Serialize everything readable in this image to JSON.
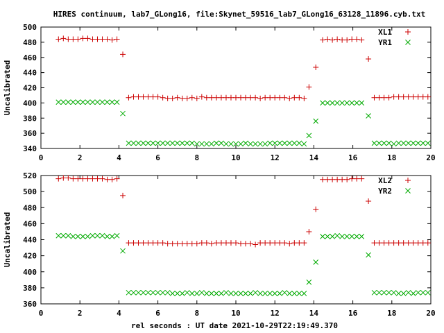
{
  "title": "HIRES continuum, lab7_GLong16, file:Skynet_59516_lab7_GLong16_63128_11896.cyb.txt",
  "xlabel": "rel seconds : UT date 2021-10-29T22:19:49.370",
  "chart_data": [
    {
      "type": "scatter",
      "ylabel": "Uncalibrated",
      "xlim": [
        0,
        20
      ],
      "ylim": [
        340,
        500
      ],
      "xticks": [
        0,
        2,
        4,
        6,
        8,
        10,
        12,
        14,
        16,
        18,
        20
      ],
      "yticks": [
        340,
        360,
        380,
        400,
        420,
        440,
        460,
        480,
        500
      ],
      "grid": false,
      "legend_position": "top-right",
      "series": [
        {
          "name": "XL1",
          "color": "#cc0000",
          "marker": "plus",
          "x": [
            0.9,
            1.15,
            1.4,
            1.65,
            1.9,
            2.15,
            2.4,
            2.65,
            2.9,
            3.15,
            3.4,
            3.65,
            3.9,
            4.2,
            4.5,
            4.75,
            5.0,
            5.25,
            5.5,
            5.75,
            6.0,
            6.25,
            6.5,
            6.75,
            7.0,
            7.25,
            7.5,
            7.75,
            8.0,
            8.25,
            8.5,
            8.75,
            9.0,
            9.25,
            9.5,
            9.75,
            10.0,
            10.25,
            10.5,
            10.75,
            11.0,
            11.25,
            11.5,
            11.75,
            12.0,
            12.25,
            12.5,
            12.75,
            13.0,
            13.25,
            13.5,
            13.75,
            14.1,
            14.45,
            14.7,
            14.95,
            15.2,
            15.45,
            15.7,
            15.95,
            16.2,
            16.45,
            16.8,
            17.1,
            17.35,
            17.6,
            17.85,
            18.1,
            18.35,
            18.6,
            18.85,
            19.1,
            19.35,
            19.6,
            19.85
          ],
          "y": [
            484,
            485,
            484,
            484,
            484,
            485,
            485,
            484,
            484,
            484,
            484,
            483,
            484,
            464,
            407,
            408,
            408,
            408,
            408,
            408,
            408,
            407,
            406,
            406,
            407,
            406,
            406,
            407,
            406,
            408,
            407,
            407,
            407,
            407,
            407,
            407,
            407,
            407,
            407,
            407,
            407,
            406,
            407,
            407,
            407,
            407,
            407,
            406,
            407,
            407,
            406,
            421,
            447,
            483,
            484,
            483,
            484,
            483,
            483,
            484,
            484,
            483,
            458,
            407,
            407,
            407,
            407,
            408,
            408,
            408,
            408,
            408,
            408,
            408,
            408
          ]
        },
        {
          "name": "YR1",
          "color": "#00aa00",
          "marker": "x",
          "x": [
            0.9,
            1.15,
            1.4,
            1.65,
            1.9,
            2.15,
            2.4,
            2.65,
            2.9,
            3.15,
            3.4,
            3.65,
            3.9,
            4.2,
            4.5,
            4.75,
            5.0,
            5.25,
            5.5,
            5.75,
            6.0,
            6.25,
            6.5,
            6.75,
            7.0,
            7.25,
            7.5,
            7.75,
            8.0,
            8.25,
            8.5,
            8.75,
            9.0,
            9.25,
            9.5,
            9.75,
            10.0,
            10.25,
            10.5,
            10.75,
            11.0,
            11.25,
            11.5,
            11.75,
            12.0,
            12.25,
            12.5,
            12.75,
            13.0,
            13.25,
            13.5,
            13.75,
            14.1,
            14.45,
            14.7,
            14.95,
            15.2,
            15.45,
            15.7,
            15.95,
            16.2,
            16.45,
            16.8,
            17.1,
            17.35,
            17.6,
            17.85,
            18.1,
            18.35,
            18.6,
            18.85,
            19.1,
            19.35,
            19.6,
            19.85
          ],
          "y": [
            401,
            401,
            401,
            401,
            401,
            401,
            401,
            401,
            401,
            401,
            401,
            401,
            401,
            386,
            347,
            347,
            347,
            347,
            347,
            347,
            347,
            347,
            347,
            347,
            347,
            347,
            347,
            347,
            346,
            346,
            346,
            346,
            347,
            347,
            346,
            346,
            346,
            346,
            347,
            346,
            346,
            346,
            346,
            347,
            347,
            347,
            347,
            347,
            347,
            347,
            346,
            357,
            376,
            400,
            400,
            400,
            400,
            400,
            400,
            400,
            400,
            400,
            383,
            347,
            347,
            347,
            347,
            346,
            347,
            347,
            347,
            347,
            347,
            347,
            347
          ]
        }
      ]
    },
    {
      "type": "scatter",
      "ylabel": "Uncalibrated",
      "xlim": [
        0,
        20
      ],
      "ylim": [
        360,
        520
      ],
      "xticks": [
        0,
        2,
        4,
        6,
        8,
        10,
        12,
        14,
        16,
        18,
        20
      ],
      "yticks": [
        360,
        380,
        400,
        420,
        440,
        460,
        480,
        500,
        520
      ],
      "grid": false,
      "legend_position": "top-right",
      "series": [
        {
          "name": "XL2",
          "color": "#cc0000",
          "marker": "plus",
          "x": [
            0.9,
            1.15,
            1.4,
            1.65,
            1.9,
            2.15,
            2.4,
            2.65,
            2.9,
            3.15,
            3.4,
            3.65,
            3.9,
            4.2,
            4.5,
            4.75,
            5.0,
            5.25,
            5.5,
            5.75,
            6.0,
            6.25,
            6.5,
            6.75,
            7.0,
            7.25,
            7.5,
            7.75,
            8.0,
            8.25,
            8.5,
            8.75,
            9.0,
            9.25,
            9.5,
            9.75,
            10.0,
            10.25,
            10.5,
            10.75,
            11.0,
            11.25,
            11.5,
            11.75,
            12.0,
            12.25,
            12.5,
            12.75,
            13.0,
            13.25,
            13.5,
            13.75,
            14.1,
            14.45,
            14.7,
            14.95,
            15.2,
            15.45,
            15.7,
            15.95,
            16.2,
            16.45,
            16.8,
            17.1,
            17.35,
            17.6,
            17.85,
            18.1,
            18.35,
            18.6,
            18.85,
            19.1,
            19.35,
            19.6,
            19.85
          ],
          "y": [
            516,
            517,
            517,
            516,
            516,
            516,
            516,
            516,
            516,
            516,
            515,
            515,
            516,
            495,
            436,
            436,
            436,
            436,
            436,
            436,
            436,
            436,
            435,
            435,
            435,
            435,
            435,
            435,
            435,
            436,
            436,
            435,
            436,
            436,
            436,
            436,
            436,
            435,
            435,
            435,
            434,
            436,
            436,
            436,
            436,
            436,
            436,
            435,
            436,
            436,
            436,
            450,
            478,
            515,
            515,
            515,
            515,
            515,
            515,
            516,
            516,
            516,
            488,
            436,
            436,
            436,
            436,
            436,
            436,
            436,
            436,
            436,
            436,
            436,
            436
          ]
        },
        {
          "name": "YR2",
          "color": "#00aa00",
          "marker": "x",
          "x": [
            0.9,
            1.15,
            1.4,
            1.65,
            1.9,
            2.15,
            2.4,
            2.65,
            2.9,
            3.15,
            3.4,
            3.65,
            3.9,
            4.2,
            4.5,
            4.75,
            5.0,
            5.25,
            5.5,
            5.75,
            6.0,
            6.25,
            6.5,
            6.75,
            7.0,
            7.25,
            7.5,
            7.75,
            8.0,
            8.25,
            8.5,
            8.75,
            9.0,
            9.25,
            9.5,
            9.75,
            10.0,
            10.25,
            10.5,
            10.75,
            11.0,
            11.25,
            11.5,
            11.75,
            12.0,
            12.25,
            12.5,
            12.75,
            13.0,
            13.25,
            13.5,
            13.75,
            14.1,
            14.45,
            14.7,
            14.95,
            15.2,
            15.45,
            15.7,
            15.95,
            16.2,
            16.45,
            16.8,
            17.1,
            17.35,
            17.6,
            17.85,
            18.1,
            18.35,
            18.6,
            18.85,
            19.1,
            19.35,
            19.6,
            19.85
          ],
          "y": [
            445,
            445,
            445,
            444,
            444,
            444,
            444,
            445,
            445,
            445,
            444,
            444,
            445,
            426,
            374,
            374,
            374,
            374,
            374,
            374,
            374,
            374,
            374,
            373,
            373,
            373,
            374,
            373,
            373,
            374,
            373,
            373,
            373,
            373,
            374,
            373,
            373,
            373,
            373,
            373,
            374,
            373,
            373,
            373,
            373,
            373,
            374,
            373,
            373,
            373,
            373,
            387,
            412,
            444,
            444,
            444,
            445,
            444,
            444,
            444,
            444,
            444,
            421,
            374,
            374,
            374,
            374,
            374,
            373,
            373,
            374,
            373,
            374,
            374,
            374
          ]
        }
      ]
    }
  ]
}
